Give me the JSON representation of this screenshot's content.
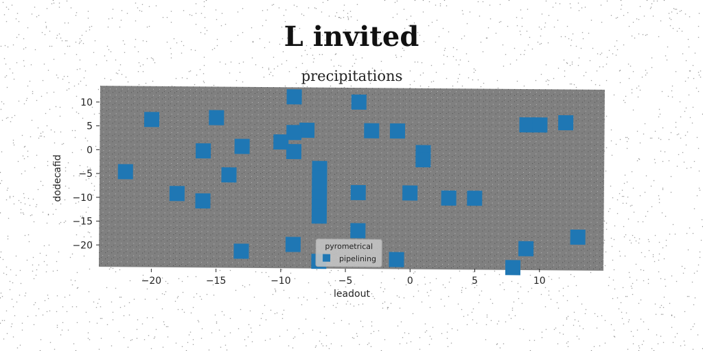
{
  "page": {
    "title": "L invited"
  },
  "chart_data": {
    "type": "scatter",
    "title": "precipitations",
    "xlabel": "leadout",
    "ylabel": "dodecafid",
    "xlim": [
      -24,
      15
    ],
    "ylim": [
      -25,
      13
    ],
    "xticks": [
      -20,
      -15,
      -10,
      -5,
      0,
      5,
      10
    ],
    "yticks": [
      10,
      5,
      0,
      -5,
      -10,
      -15,
      -20
    ],
    "xtick_labels": [
      "−20",
      "−15",
      "−10",
      "−5",
      "0",
      "5",
      "10"
    ],
    "ytick_labels": [
      "10",
      "5",
      "0",
      "−5",
      "−10",
      "−15",
      "−20"
    ],
    "grid": false,
    "background_color": "#808080",
    "legend": {
      "title": "pyrometrical",
      "placement": "lower-center"
    },
    "series": [
      {
        "name": "pipelining",
        "color": "#1f77b4",
        "marker": "square",
        "points": [
          [
            -9,
            11
          ],
          [
            -4,
            10
          ],
          [
            -15,
            6.5
          ],
          [
            -20,
            6
          ],
          [
            -8,
            4
          ],
          [
            -9,
            3.5
          ],
          [
            -3,
            4
          ],
          [
            -1,
            4
          ],
          [
            9,
            5.5
          ],
          [
            10,
            5.5
          ],
          [
            12,
            6
          ],
          [
            -10,
            1.5
          ],
          [
            -13,
            0.5
          ],
          [
            -16,
            -0.5
          ],
          [
            -9,
            -0.5
          ],
          [
            1,
            -0.5
          ],
          [
            1,
            -2
          ],
          [
            -22,
            -5
          ],
          [
            -14,
            -5.5
          ],
          [
            -7,
            -4
          ],
          [
            -7,
            -6
          ],
          [
            -7,
            -8
          ],
          [
            -7,
            -10
          ],
          [
            -7,
            -12
          ],
          [
            -7,
            -14
          ],
          [
            -18,
            -9.5
          ],
          [
            -4,
            -9
          ],
          [
            0,
            -9
          ],
          [
            3,
            -10
          ],
          [
            5,
            -10
          ],
          [
            -16,
            -11
          ],
          [
            -4,
            -17
          ],
          [
            13,
            -18
          ],
          [
            -9,
            -20
          ],
          [
            -13,
            -21.5
          ],
          [
            9,
            -20.5
          ],
          [
            -1,
            -23
          ],
          [
            -7,
            -23.5
          ],
          [
            8,
            -24.5
          ]
        ]
      }
    ]
  }
}
